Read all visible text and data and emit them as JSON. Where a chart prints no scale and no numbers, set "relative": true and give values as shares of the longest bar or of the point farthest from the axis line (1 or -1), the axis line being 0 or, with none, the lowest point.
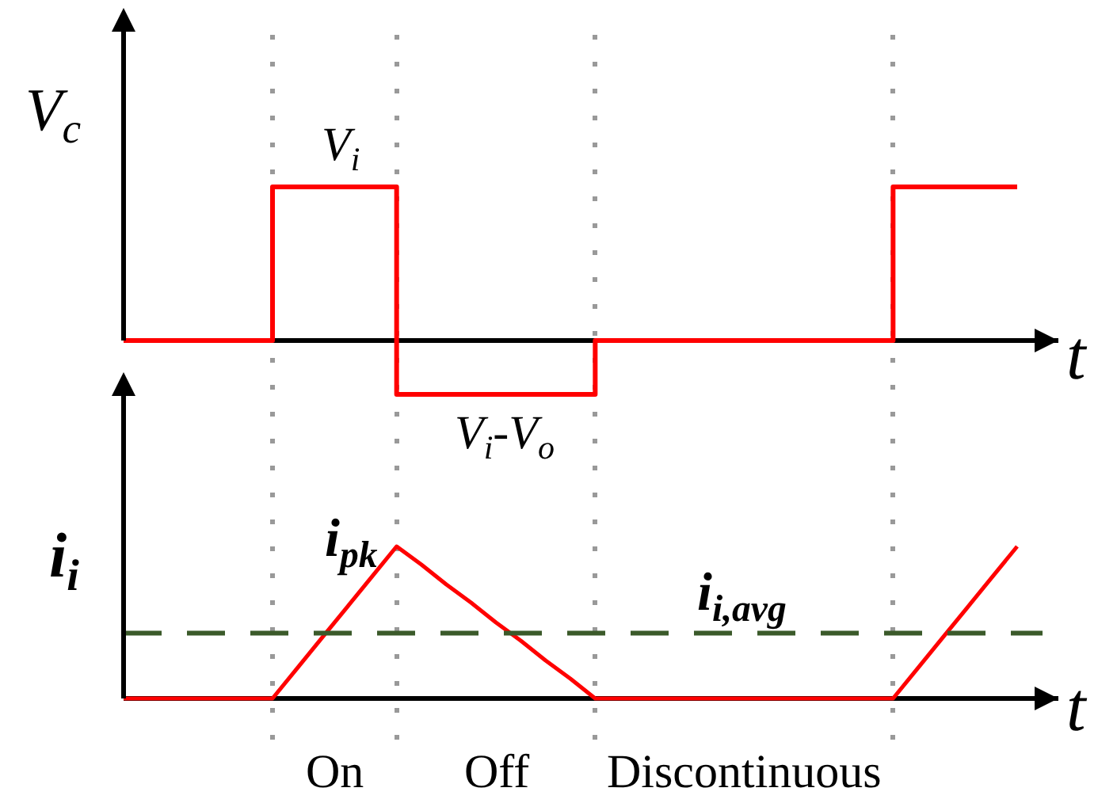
{
  "chart_data": [
    {
      "type": "step",
      "ylabel": "V$_{c}$",
      "xlabel": "t",
      "relative": true,
      "grid": "x",
      "categories": [
        null,
        null,
        null,
        null,
        null,
        null,
        null,
        null,
        null,
        null,
        null,
        null,
        null,
        null,
        null,
        null,
        null,
        null,
        null,
        null,
        null,
        null,
        null,
        null,
        null,
        null,
        null,
        null,
        null,
        null,
        null,
        null,
        null,
        null,
        null,
        null,
        null
      ],
      "values": [
        0,
        0,
        0,
        0,
        0,
        0,
        1,
        1,
        1,
        1,
        1,
        -0.35,
        -0.35,
        -0.35,
        -0.35,
        -0.35,
        -0.35,
        -0.35,
        -0.35,
        0,
        0,
        0,
        0,
        0,
        0,
        0,
        0,
        0,
        0,
        0,
        0,
        1,
        1,
        1,
        1,
        1,
        1
      ],
      "color": "#ff0000",
      "annotations": [
        {
          "text": "V$_{i}$",
          "y": 1
        },
        {
          "text": "V$_{i}$-V$_{o}$",
          "y": -0.35
        }
      ]
    },
    {
      "type": "line",
      "ylabel": "i$_{i}$",
      "xlabel": "t",
      "relative": true,
      "grid": "x",
      "categories": [
        null,
        null,
        null,
        null,
        null,
        null,
        null,
        null,
        null,
        null,
        null,
        null,
        null,
        null,
        null,
        null,
        null,
        null,
        null,
        null,
        null,
        null,
        null,
        null,
        null,
        null,
        null,
        null,
        null,
        null,
        null,
        null,
        null,
        null,
        null,
        null,
        null
      ],
      "values": [
        0,
        0,
        0,
        0,
        0,
        0,
        0,
        0.2,
        0.4,
        0.6,
        0.8,
        1,
        0.88,
        0.75,
        0.63,
        0.5,
        0.38,
        0.25,
        0.13,
        0,
        0,
        0,
        0,
        0,
        0,
        0,
        0,
        0,
        0,
        0,
        0,
        0,
        0.2,
        0.4,
        0.6,
        0.8,
        1
      ],
      "color": "#ff0000",
      "ref_lines": [
        {
          "axis": "y",
          "value": 0.43,
          "label": "i$_{i,avg}$",
          "color": "#3b5a2a",
          "line_style": "dashed"
        }
      ],
      "annotations": [
        "i$_{pk}$",
        "On",
        "Off",
        "Discontinuous"
      ]
    }
  ]
}
